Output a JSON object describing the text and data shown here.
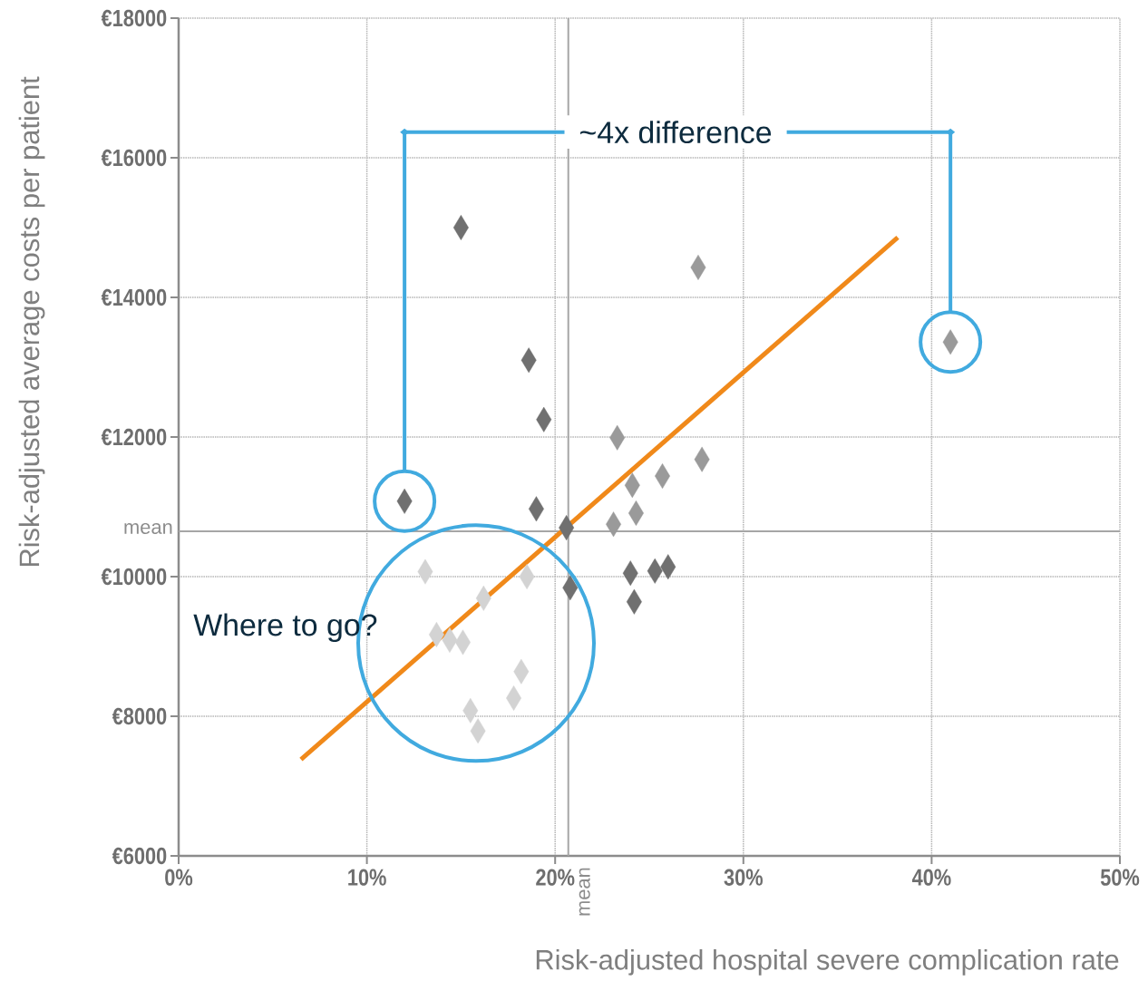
{
  "chart_data": {
    "type": "scatter",
    "xlabel": "Risk-adjusted hospital severe complication rate",
    "ylabel": "Risk-adjusted average costs per patient",
    "xlim": [
      0,
      50
    ],
    "ylim": [
      6000,
      18000
    ],
    "xticks": [
      {
        "value": 0,
        "label": "0%"
      },
      {
        "value": 10,
        "label": "10%"
      },
      {
        "value": 20,
        "label": "20%"
      },
      {
        "value": 30,
        "label": "30%"
      },
      {
        "value": 40,
        "label": "40%"
      },
      {
        "value": 50,
        "label": "50%"
      }
    ],
    "yticks": [
      {
        "value": 6000,
        "label": "€6000"
      },
      {
        "value": 8000,
        "label": "€8000"
      },
      {
        "value": 10000,
        "label": "€10000"
      },
      {
        "value": 12000,
        "label": "€12000"
      },
      {
        "value": 14000,
        "label": "€14000"
      },
      {
        "value": 16000,
        "label": "€16000"
      },
      {
        "value": 18000,
        "label": "€18000"
      }
    ],
    "grid": true,
    "series": [
      {
        "marker": "diamond",
        "color": "#707070",
        "x": [
          12.0,
          15.0,
          18.6,
          19.4,
          19.0,
          20.6,
          20.8,
          24.0,
          24.2,
          25.3,
          26.0
        ],
        "values": [
          11080,
          15000,
          13100,
          12250,
          10970,
          10700,
          9840,
          10050,
          9640,
          10080,
          10140
        ]
      },
      {
        "marker": "diamond",
        "color": "#9a9a9a",
        "x": [
          27.6,
          41.0,
          23.3,
          27.8,
          25.7,
          24.1,
          23.1,
          24.3
        ],
        "values": [
          14430,
          13360,
          11990,
          11680,
          11440,
          11310,
          10750,
          10910
        ]
      },
      {
        "marker": "diamond",
        "color": "#d3d3d3",
        "x": [
          13.1,
          16.2,
          18.5,
          13.7,
          14.4,
          15.1,
          18.2,
          17.8,
          15.5,
          15.9
        ],
        "values": [
          10070,
          9690,
          10000,
          9170,
          9090,
          9060,
          8640,
          8260,
          8080,
          7790
        ]
      },
      {
        "type": "line",
        "color": "#f0891a",
        "x": [
          6.5,
          38.2
        ],
        "values": [
          7380,
          14860
        ]
      }
    ],
    "ref_lines": [
      {
        "axis": "y",
        "value": 10650,
        "label": "mean"
      },
      {
        "axis": "x",
        "value": 20.7,
        "label": "mean"
      }
    ],
    "annotations": [
      "~4x difference",
      "Where to go?"
    ]
  }
}
